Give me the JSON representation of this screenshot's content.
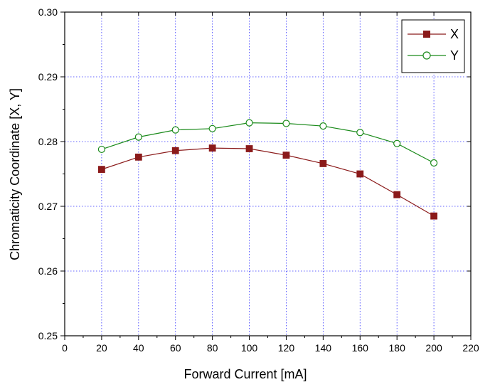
{
  "chart_data": {
    "type": "line",
    "title": "",
    "xlabel": "Forward Current [mA]",
    "ylabel": "Chromaticity Coordinate [X, Y]",
    "xlim": [
      0,
      220
    ],
    "ylim": [
      0.25,
      0.3
    ],
    "x_ticks": [
      0,
      20,
      40,
      60,
      80,
      100,
      120,
      140,
      160,
      180,
      200,
      220
    ],
    "x_tick_labels": [
      "0",
      "20",
      "40",
      "60",
      "80",
      "100",
      "120",
      "140",
      "160",
      "180",
      "200",
      "220"
    ],
    "y_ticks": [
      0.25,
      0.26,
      0.27,
      0.28,
      0.29,
      0.3
    ],
    "y_tick_labels": [
      "0.25",
      "0.26",
      "0.27",
      "0.28",
      "0.29",
      "0.30"
    ],
    "grid": true,
    "grid_x": [
      20,
      40,
      60,
      80,
      100,
      120,
      140,
      160,
      180,
      200
    ],
    "grid_y": [
      0.26,
      0.27,
      0.28,
      0.29
    ],
    "grid_color": "#3333ff",
    "legend_position": "top-right",
    "x": [
      20,
      40,
      60,
      80,
      100,
      120,
      140,
      160,
      180,
      200
    ],
    "series": [
      {
        "name": "X",
        "marker": "filled-square",
        "color": "#8b1a1a",
        "values": [
          0.2757,
          0.2776,
          0.2786,
          0.279,
          0.2789,
          0.2779,
          0.2766,
          0.275,
          0.2718,
          0.2685
        ]
      },
      {
        "name": "Y",
        "marker": "open-circle",
        "color": "#1a8a1a",
        "values": [
          0.2788,
          0.2807,
          0.2818,
          0.282,
          0.2829,
          0.2828,
          0.2824,
          0.2814,
          0.2797,
          0.2767
        ]
      }
    ]
  }
}
